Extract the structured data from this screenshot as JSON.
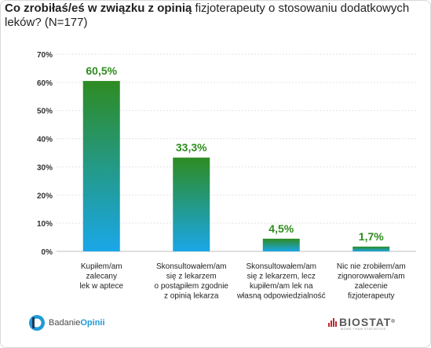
{
  "title": {
    "bold": "Co zrobiłaś/eś w związku z opinią",
    "rest": " fizjoterapeuty o stosowaniu dodatkowych leków? (N=177)"
  },
  "chart_data": {
    "type": "bar",
    "categories": [
      [
        "Kupiłem/am",
        "zalecany",
        "lek w aptece"
      ],
      [
        "Skonsultowałem/am",
        "się z lekarzem",
        "o postąpiłem zgodnie",
        "z opinią lekarza"
      ],
      [
        "Skonsultowałem/am",
        "się z lekarzem, lecz",
        "kupiłem/am lek na",
        "własną odpowiedzialność"
      ],
      [
        "Nic nie zrobiłem/am",
        "zignorowwałem/am",
        "zalecenie",
        "fizjoterapeuty"
      ]
    ],
    "values": [
      60.5,
      33.3,
      4.5,
      1.7
    ],
    "value_labels": [
      "60,5%",
      "33,3%",
      "4,5%",
      "1,7%"
    ],
    "ylim": [
      0,
      70
    ],
    "yticks": [
      "0%",
      "10%",
      "20%",
      "30%",
      "40%",
      "50%",
      "60%",
      "70%"
    ],
    "grid": true,
    "colors": {
      "bar_top": "#2e8b22",
      "bar_bottom": "#1aa7e8",
      "label": "#2f8c1e"
    }
  },
  "footer": {
    "brand_left_light": "Badanie",
    "brand_left_bold": "Opinii",
    "brand_right": "BIOSTAT",
    "brand_right_mark": "®",
    "brand_right_tagline": "MORE THAN STATISTICS"
  }
}
